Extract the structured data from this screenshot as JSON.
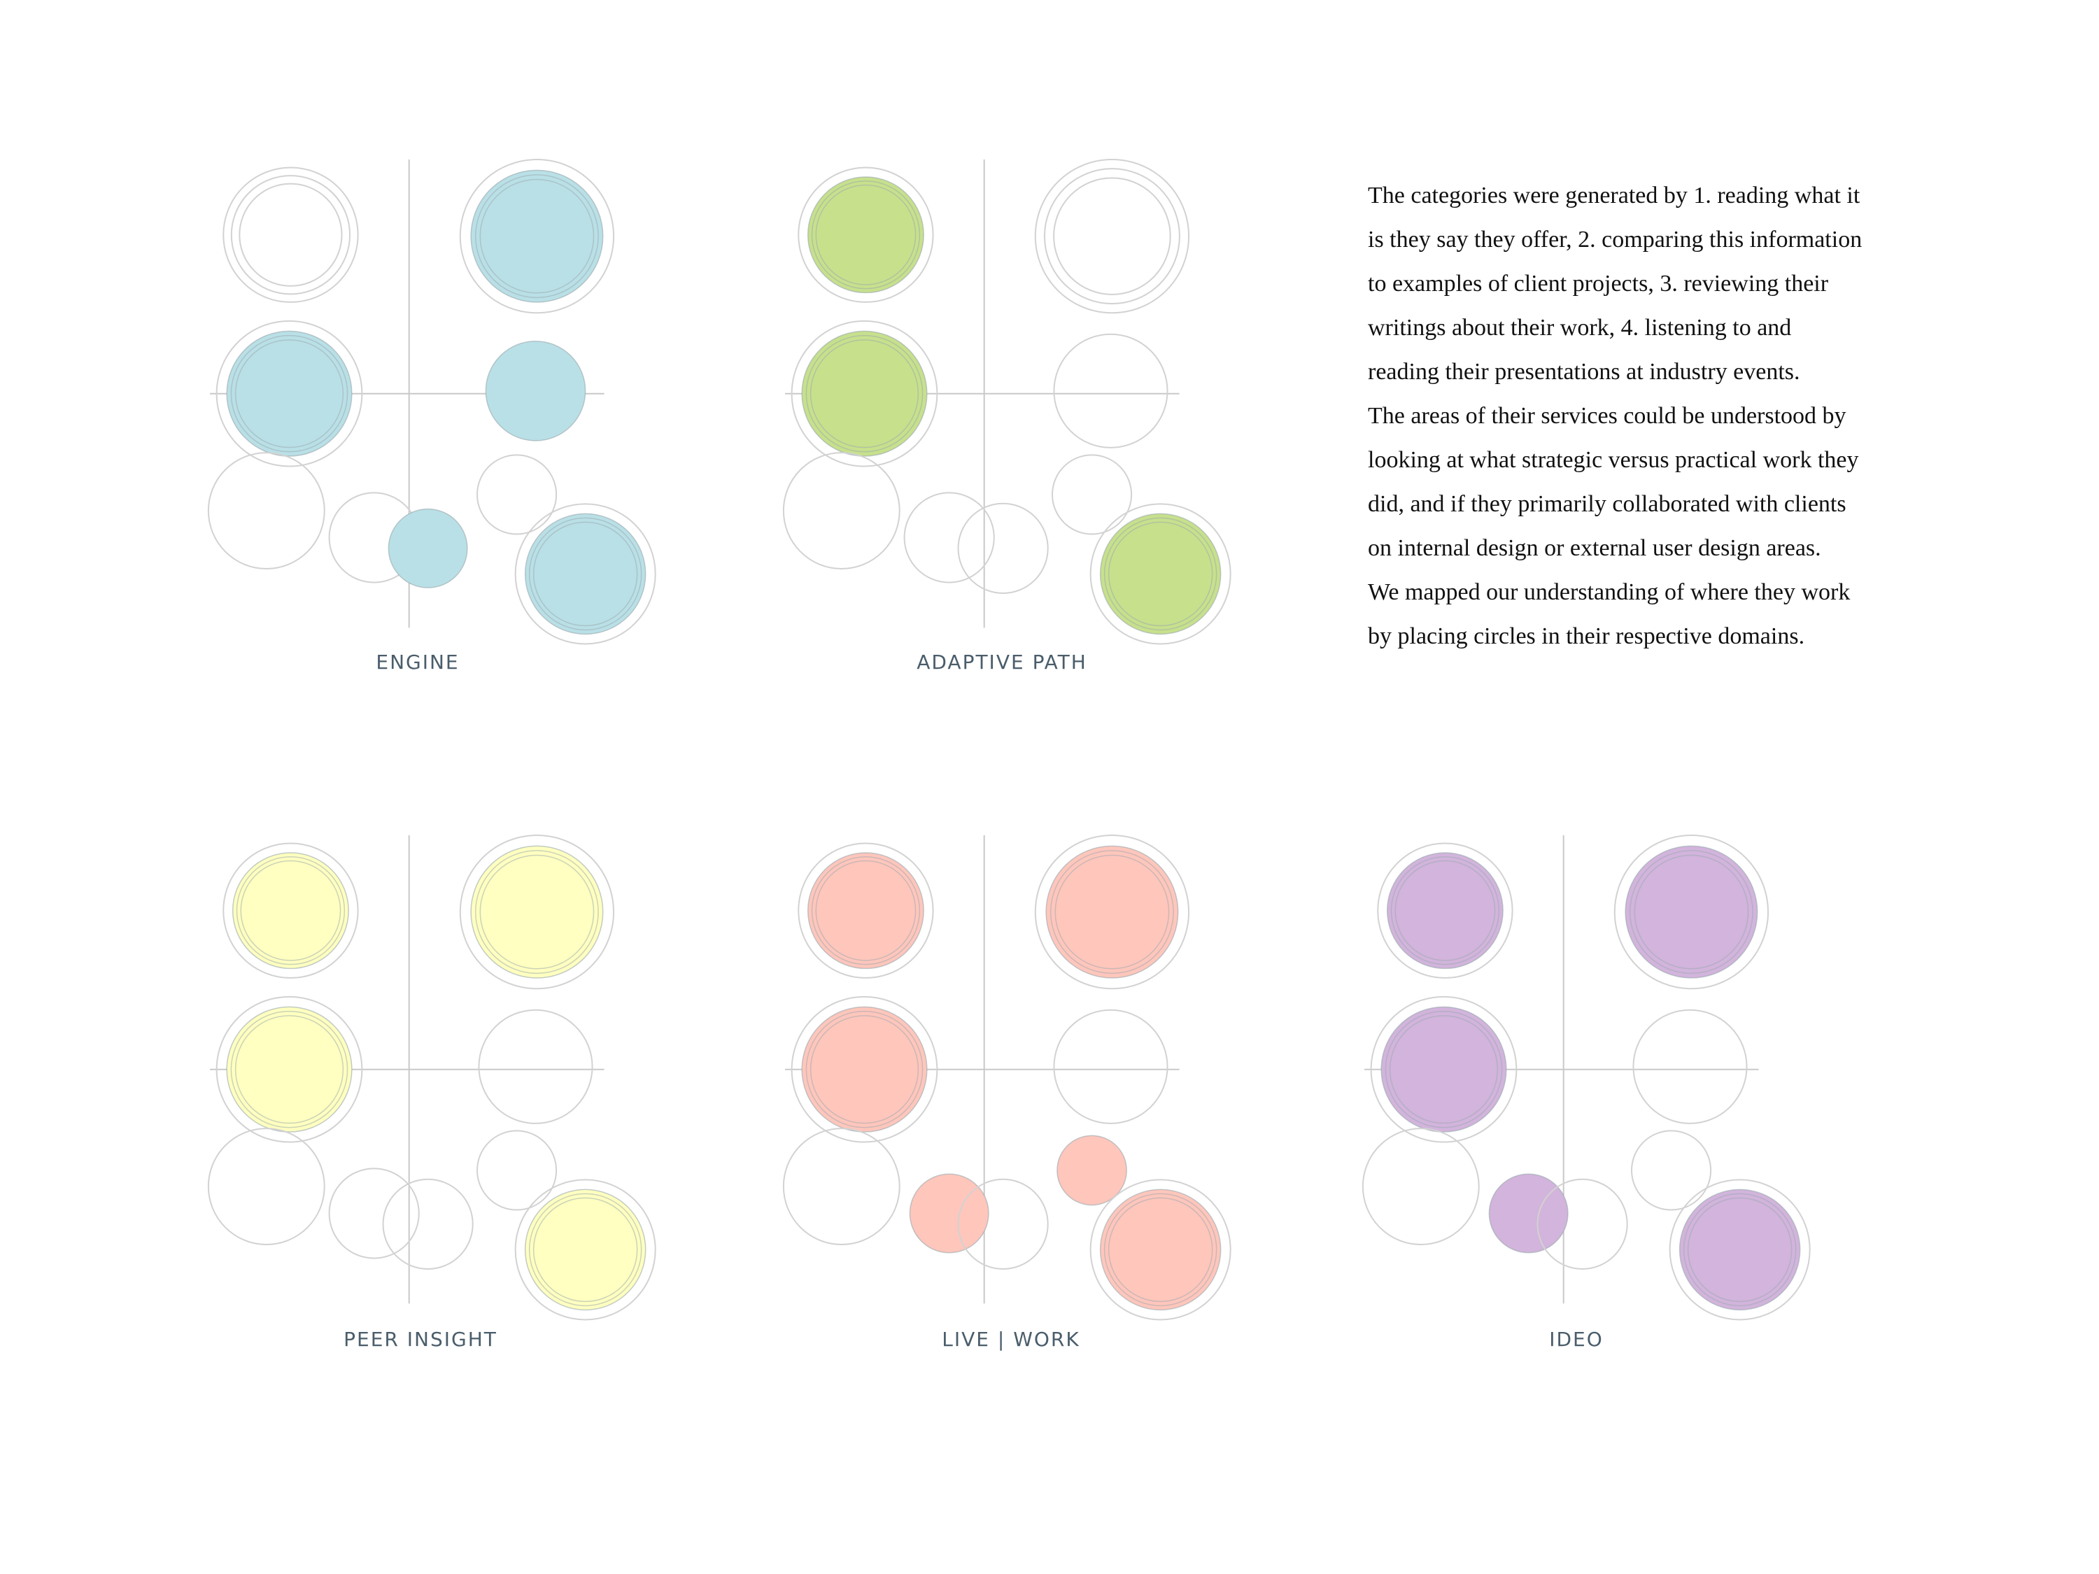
{
  "colors": {
    "grid_line": "#c9c9c9",
    "outline": "#d2d2d2",
    "fill_stroke": "#9aa8ad",
    "label": "#4a5d6b",
    "text": "#111111"
  },
  "paragraph": [
    "The categories were generated by 1. reading what it",
    "is they say they offer, 2. comparing this information",
    "to examples of client projects, 3. reviewing their",
    "writings about their work, 4. listening to and",
    "reading their presentations at industry events.",
    "The areas of their services could be understood by",
    "looking at what strategic versus practical work they",
    "did, and if they primarily collaborated with clients",
    "on internal design or external user design areas.",
    "We mapped our understanding of where they work",
    "by placing circles in their respective domains."
  ],
  "diagrams": [
    {
      "name": "ENGINE",
      "color": "#b9e0e6",
      "filled": [
        "top-left-small-outer",
        "top-right",
        "mid-left",
        "mid-right",
        "bottom-center",
        "bottom-right"
      ],
      "filled_note": "",
      "fill": {
        "top-left": false,
        "top-right": true,
        "mid-left": true,
        "mid-right": true,
        "bottom-left": false,
        "bottom-center-left": false,
        "bottom-center": true,
        "bottom-right-small": false,
        "bottom-right": true
      }
    },
    {
      "name": "ADAPTIVE PATH",
      "color": "#c7e08c",
      "fill": {
        "top-left": true,
        "top-right": false,
        "mid-left": true,
        "mid-right": false,
        "bottom-left": false,
        "bottom-center-left": false,
        "bottom-center": false,
        "bottom-right-small": false,
        "bottom-right": true
      }
    },
    {
      "name": "PEER INSIGHT",
      "color": "#feffc0",
      "fill": {
        "top-left": true,
        "top-right": true,
        "mid-left": true,
        "mid-right": false,
        "bottom-left": false,
        "bottom-center-left": false,
        "bottom-center": false,
        "bottom-right-small": false,
        "bottom-right": true
      }
    },
    {
      "name": "LIVE | WORK",
      "color": "#ffc6bc",
      "fill": {
        "top-left": true,
        "top-right": true,
        "mid-left": true,
        "mid-right": false,
        "bottom-left": false,
        "bottom-center-left": true,
        "bottom-center": false,
        "bottom-right-small": true,
        "bottom-right": true
      }
    },
    {
      "name": "IDEO",
      "color": "#d2b4dc",
      "fill": {
        "top-left": true,
        "top-right": true,
        "mid-left": true,
        "mid-right": false,
        "bottom-left": false,
        "bottom-center-left": true,
        "bottom-center": false,
        "bottom-right-small": false,
        "bottom-right": true
      }
    }
  ]
}
